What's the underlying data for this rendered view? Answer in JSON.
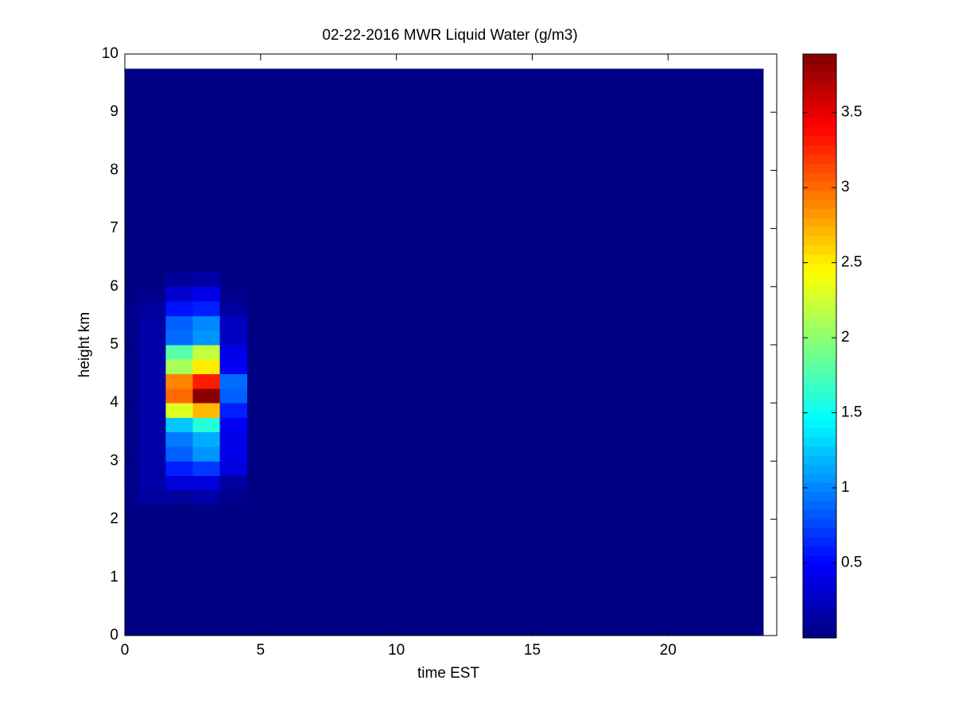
{
  "chart_data": {
    "type": "heatmap",
    "title": "02-22-2016 MWR Liquid Water (g/m3)",
    "xlabel": "time EST",
    "ylabel": "height km",
    "xlim": [
      0,
      24
    ],
    "xticks": [
      0,
      5,
      10,
      15,
      20
    ],
    "ylim": [
      0,
      10
    ],
    "yticks": [
      0,
      1,
      2,
      3,
      4,
      5,
      6,
      7,
      8,
      9,
      10
    ],
    "clim": [
      0,
      3.89
    ],
    "cticks": [
      0.5,
      1,
      1.5,
      2,
      2.5,
      3,
      3.5
    ],
    "colormap": "jet",
    "x": [
      0,
      1,
      2,
      3,
      4,
      5,
      6,
      7,
      8,
      9,
      10,
      11,
      12,
      13,
      14,
      15,
      16,
      17,
      18,
      19,
      20,
      21,
      22,
      23
    ],
    "y": [
      0.125,
      0.375,
      0.625,
      0.875,
      1.125,
      1.375,
      1.625,
      1.875,
      2.125,
      2.375,
      2.625,
      2.875,
      3.125,
      3.375,
      3.625,
      3.875,
      4.125,
      4.375,
      4.625,
      4.875,
      5.125,
      5.375,
      5.625,
      5.875,
      6.125,
      6.375,
      6.625,
      6.875,
      7.125,
      7.375,
      7.625,
      7.875,
      8.125,
      8.375,
      8.625,
      8.875,
      9.125,
      9.375,
      9.625
    ],
    "z": [
      [
        0.02,
        0.02,
        0.02,
        0.02,
        0.02,
        0.02,
        0.02,
        0.02,
        0.02,
        0.02,
        0.02,
        0.02,
        0.02,
        0.02,
        0.02,
        0.02,
        0.02,
        0.02,
        0.02,
        0.02,
        0.02,
        0.02,
        0.02,
        0.02
      ],
      [
        0.02,
        0.02,
        0.02,
        0.02,
        0.02,
        0.02,
        0.02,
        0.02,
        0.02,
        0.02,
        0.02,
        0.02,
        0.02,
        0.02,
        0.02,
        0.02,
        0.02,
        0.02,
        0.02,
        0.02,
        0.02,
        0.02,
        0.02,
        0.02
      ],
      [
        0.02,
        0.02,
        0.02,
        0.02,
        0.02,
        0.02,
        0.02,
        0.02,
        0.02,
        0.02,
        0.02,
        0.02,
        0.02,
        0.02,
        0.02,
        0.02,
        0.02,
        0.02,
        0.02,
        0.02,
        0.02,
        0.02,
        0.02,
        0.02
      ],
      [
        0.02,
        0.02,
        0.02,
        0.02,
        0.02,
        0.02,
        0.02,
        0.02,
        0.02,
        0.02,
        0.02,
        0.02,
        0.02,
        0.02,
        0.02,
        0.02,
        0.02,
        0.02,
        0.02,
        0.02,
        0.02,
        0.02,
        0.02,
        0.02
      ],
      [
        0.02,
        0.02,
        0.02,
        0.02,
        0.02,
        0.02,
        0.02,
        0.02,
        0.02,
        0.02,
        0.02,
        0.02,
        0.02,
        0.02,
        0.02,
        0.02,
        0.02,
        0.02,
        0.02,
        0.02,
        0.02,
        0.02,
        0.02,
        0.02
      ],
      [
        0.02,
        0.02,
        0.02,
        0.02,
        0.02,
        0.02,
        0.02,
        0.02,
        0.02,
        0.02,
        0.02,
        0.02,
        0.02,
        0.02,
        0.02,
        0.02,
        0.02,
        0.02,
        0.02,
        0.02,
        0.02,
        0.02,
        0.02,
        0.02
      ],
      [
        0.02,
        0.02,
        0.02,
        0.02,
        0.02,
        0.02,
        0.02,
        0.02,
        0.02,
        0.02,
        0.02,
        0.02,
        0.02,
        0.02,
        0.02,
        0.02,
        0.02,
        0.02,
        0.02,
        0.02,
        0.02,
        0.02,
        0.02,
        0.02
      ],
      [
        0.02,
        0.02,
        0.02,
        0.02,
        0.02,
        0.02,
        0.02,
        0.02,
        0.02,
        0.02,
        0.02,
        0.02,
        0.02,
        0.02,
        0.02,
        0.02,
        0.02,
        0.02,
        0.02,
        0.02,
        0.02,
        0.02,
        0.02,
        0.02
      ],
      [
        0.02,
        0.02,
        0.02,
        0.02,
        0.02,
        0.02,
        0.02,
        0.02,
        0.02,
        0.02,
        0.02,
        0.02,
        0.02,
        0.02,
        0.02,
        0.02,
        0.02,
        0.02,
        0.02,
        0.02,
        0.02,
        0.02,
        0.02,
        0.02
      ],
      [
        0.04,
        0.12,
        0.1,
        0.15,
        0.05,
        0.02,
        0.02,
        0.02,
        0.02,
        0.02,
        0.02,
        0.02,
        0.02,
        0.02,
        0.02,
        0.02,
        0.02,
        0.02,
        0.02,
        0.02,
        0.02,
        0.02,
        0.02,
        0.02
      ],
      [
        0.05,
        0.15,
        0.35,
        0.35,
        0.12,
        0.02,
        0.02,
        0.02,
        0.02,
        0.02,
        0.02,
        0.02,
        0.02,
        0.02,
        0.02,
        0.02,
        0.02,
        0.02,
        0.02,
        0.02,
        0.02,
        0.02,
        0.02,
        0.02
      ],
      [
        0.05,
        0.15,
        0.6,
        0.7,
        0.35,
        0.02,
        0.02,
        0.02,
        0.02,
        0.02,
        0.02,
        0.02,
        0.02,
        0.02,
        0.02,
        0.02,
        0.02,
        0.02,
        0.02,
        0.02,
        0.02,
        0.02,
        0.02,
        0.02
      ],
      [
        0.05,
        0.15,
        0.85,
        1.05,
        0.4,
        0.02,
        0.02,
        0.02,
        0.02,
        0.02,
        0.02,
        0.02,
        0.02,
        0.02,
        0.02,
        0.02,
        0.02,
        0.02,
        0.02,
        0.02,
        0.02,
        0.02,
        0.02,
        0.02
      ],
      [
        0.05,
        0.15,
        0.95,
        1.15,
        0.4,
        0.02,
        0.02,
        0.02,
        0.02,
        0.02,
        0.02,
        0.02,
        0.02,
        0.02,
        0.02,
        0.02,
        0.02,
        0.02,
        0.02,
        0.02,
        0.02,
        0.02,
        0.02,
        0.02
      ],
      [
        0.05,
        0.15,
        1.25,
        1.6,
        0.45,
        0.02,
        0.02,
        0.02,
        0.02,
        0.02,
        0.02,
        0.02,
        0.02,
        0.02,
        0.02,
        0.02,
        0.02,
        0.02,
        0.02,
        0.02,
        0.02,
        0.02,
        0.02,
        0.02
      ],
      [
        0.05,
        0.15,
        2.3,
        2.7,
        0.6,
        0.02,
        0.02,
        0.02,
        0.02,
        0.02,
        0.02,
        0.02,
        0.02,
        0.02,
        0.02,
        0.02,
        0.02,
        0.02,
        0.02,
        0.02,
        0.02,
        0.02,
        0.02,
        0.02
      ],
      [
        0.05,
        0.15,
        3.0,
        3.85,
        0.85,
        0.02,
        0.02,
        0.02,
        0.02,
        0.02,
        0.02,
        0.02,
        0.02,
        0.02,
        0.02,
        0.02,
        0.02,
        0.02,
        0.02,
        0.02,
        0.02,
        0.02,
        0.02,
        0.02
      ],
      [
        0.05,
        0.15,
        2.9,
        3.3,
        0.9,
        0.02,
        0.02,
        0.02,
        0.02,
        0.02,
        0.02,
        0.02,
        0.02,
        0.02,
        0.02,
        0.02,
        0.02,
        0.02,
        0.02,
        0.02,
        0.02,
        0.02,
        0.02,
        0.02
      ],
      [
        0.05,
        0.15,
        2.1,
        2.5,
        0.45,
        0.02,
        0.02,
        0.02,
        0.02,
        0.02,
        0.02,
        0.02,
        0.02,
        0.02,
        0.02,
        0.02,
        0.02,
        0.02,
        0.02,
        0.02,
        0.02,
        0.02,
        0.02,
        0.02
      ],
      [
        0.05,
        0.15,
        1.8,
        2.2,
        0.4,
        0.02,
        0.02,
        0.02,
        0.02,
        0.02,
        0.02,
        0.02,
        0.02,
        0.02,
        0.02,
        0.02,
        0.02,
        0.02,
        0.02,
        0.02,
        0.02,
        0.02,
        0.02,
        0.02
      ],
      [
        0.05,
        0.15,
        0.9,
        1.05,
        0.25,
        0.02,
        0.02,
        0.02,
        0.02,
        0.02,
        0.02,
        0.02,
        0.02,
        0.02,
        0.02,
        0.02,
        0.02,
        0.02,
        0.02,
        0.02,
        0.02,
        0.02,
        0.02,
        0.02
      ],
      [
        0.05,
        0.15,
        0.85,
        1.0,
        0.25,
        0.02,
        0.02,
        0.02,
        0.02,
        0.02,
        0.02,
        0.02,
        0.02,
        0.02,
        0.02,
        0.02,
        0.02,
        0.02,
        0.02,
        0.02,
        0.02,
        0.02,
        0.02,
        0.02
      ],
      [
        0.05,
        0.12,
        0.55,
        0.6,
        0.12,
        0.02,
        0.02,
        0.02,
        0.02,
        0.02,
        0.02,
        0.02,
        0.02,
        0.02,
        0.02,
        0.02,
        0.02,
        0.02,
        0.02,
        0.02,
        0.02,
        0.02,
        0.02,
        0.02
      ],
      [
        0.03,
        0.05,
        0.3,
        0.4,
        0.05,
        0.02,
        0.02,
        0.02,
        0.02,
        0.02,
        0.02,
        0.02,
        0.02,
        0.02,
        0.02,
        0.02,
        0.02,
        0.02,
        0.02,
        0.02,
        0.02,
        0.02,
        0.02,
        0.02
      ],
      [
        0.02,
        0.02,
        0.1,
        0.15,
        0.02,
        0.02,
        0.02,
        0.02,
        0.02,
        0.02,
        0.02,
        0.02,
        0.02,
        0.02,
        0.02,
        0.02,
        0.02,
        0.02,
        0.02,
        0.02,
        0.02,
        0.02,
        0.02,
        0.02
      ],
      [
        0.02,
        0.02,
        0.02,
        0.02,
        0.02,
        0.02,
        0.02,
        0.02,
        0.02,
        0.02,
        0.02,
        0.02,
        0.02,
        0.02,
        0.02,
        0.02,
        0.02,
        0.02,
        0.02,
        0.02,
        0.02,
        0.02,
        0.02,
        0.02
      ],
      [
        0.02,
        0.02,
        0.02,
        0.02,
        0.02,
        0.02,
        0.02,
        0.02,
        0.02,
        0.02,
        0.02,
        0.02,
        0.02,
        0.02,
        0.02,
        0.02,
        0.02,
        0.02,
        0.02,
        0.02,
        0.02,
        0.02,
        0.02,
        0.02
      ],
      [
        0.02,
        0.02,
        0.02,
        0.02,
        0.02,
        0.02,
        0.02,
        0.02,
        0.02,
        0.02,
        0.02,
        0.02,
        0.02,
        0.02,
        0.02,
        0.02,
        0.02,
        0.02,
        0.02,
        0.02,
        0.02,
        0.02,
        0.02,
        0.02
      ],
      [
        0.02,
        0.02,
        0.02,
        0.02,
        0.02,
        0.02,
        0.02,
        0.02,
        0.02,
        0.02,
        0.02,
        0.02,
        0.02,
        0.02,
        0.02,
        0.02,
        0.02,
        0.02,
        0.02,
        0.02,
        0.02,
        0.02,
        0.02,
        0.02
      ],
      [
        0.02,
        0.02,
        0.02,
        0.02,
        0.02,
        0.02,
        0.02,
        0.02,
        0.02,
        0.02,
        0.02,
        0.02,
        0.02,
        0.02,
        0.02,
        0.02,
        0.02,
        0.02,
        0.02,
        0.02,
        0.02,
        0.02,
        0.02,
        0.02
      ],
      [
        0.02,
        0.02,
        0.02,
        0.02,
        0.02,
        0.02,
        0.02,
        0.02,
        0.02,
        0.02,
        0.02,
        0.02,
        0.02,
        0.02,
        0.02,
        0.02,
        0.02,
        0.02,
        0.02,
        0.02,
        0.02,
        0.02,
        0.02,
        0.02
      ],
      [
        0.02,
        0.02,
        0.02,
        0.02,
        0.02,
        0.02,
        0.02,
        0.02,
        0.02,
        0.02,
        0.02,
        0.02,
        0.02,
        0.02,
        0.02,
        0.02,
        0.02,
        0.02,
        0.02,
        0.02,
        0.02,
        0.02,
        0.02,
        0.02
      ],
      [
        0.02,
        0.02,
        0.02,
        0.02,
        0.02,
        0.02,
        0.02,
        0.02,
        0.02,
        0.02,
        0.02,
        0.02,
        0.02,
        0.02,
        0.02,
        0.02,
        0.02,
        0.02,
        0.02,
        0.02,
        0.02,
        0.02,
        0.02,
        0.02
      ],
      [
        0.02,
        0.02,
        0.02,
        0.02,
        0.02,
        0.02,
        0.02,
        0.02,
        0.02,
        0.02,
        0.02,
        0.02,
        0.02,
        0.02,
        0.02,
        0.02,
        0.02,
        0.02,
        0.02,
        0.02,
        0.02,
        0.02,
        0.02,
        0.02
      ],
      [
        0.02,
        0.02,
        0.02,
        0.02,
        0.02,
        0.02,
        0.02,
        0.02,
        0.02,
        0.02,
        0.02,
        0.02,
        0.02,
        0.02,
        0.02,
        0.02,
        0.02,
        0.02,
        0.02,
        0.02,
        0.02,
        0.02,
        0.02,
        0.02
      ],
      [
        0.02,
        0.02,
        0.02,
        0.02,
        0.02,
        0.02,
        0.02,
        0.02,
        0.02,
        0.02,
        0.02,
        0.02,
        0.02,
        0.02,
        0.02,
        0.02,
        0.02,
        0.02,
        0.02,
        0.02,
        0.02,
        0.02,
        0.02,
        0.02
      ],
      [
        0.02,
        0.02,
        0.02,
        0.02,
        0.02,
        0.02,
        0.02,
        0.02,
        0.02,
        0.02,
        0.02,
        0.02,
        0.02,
        0.02,
        0.02,
        0.02,
        0.02,
        0.02,
        0.02,
        0.02,
        0.02,
        0.02,
        0.02,
        0.02
      ],
      [
        0.02,
        0.02,
        0.02,
        0.02,
        0.02,
        0.02,
        0.02,
        0.02,
        0.02,
        0.02,
        0.02,
        0.02,
        0.02,
        0.02,
        0.02,
        0.02,
        0.02,
        0.02,
        0.02,
        0.02,
        0.02,
        0.02,
        0.02,
        0.02
      ],
      [
        0.02,
        0.02,
        0.02,
        0.02,
        0.02,
        0.02,
        0.02,
        0.02,
        0.02,
        0.02,
        0.02,
        0.02,
        0.02,
        0.02,
        0.02,
        0.02,
        0.02,
        0.02,
        0.02,
        0.02,
        0.02,
        0.02,
        0.02,
        0.02
      ]
    ]
  }
}
